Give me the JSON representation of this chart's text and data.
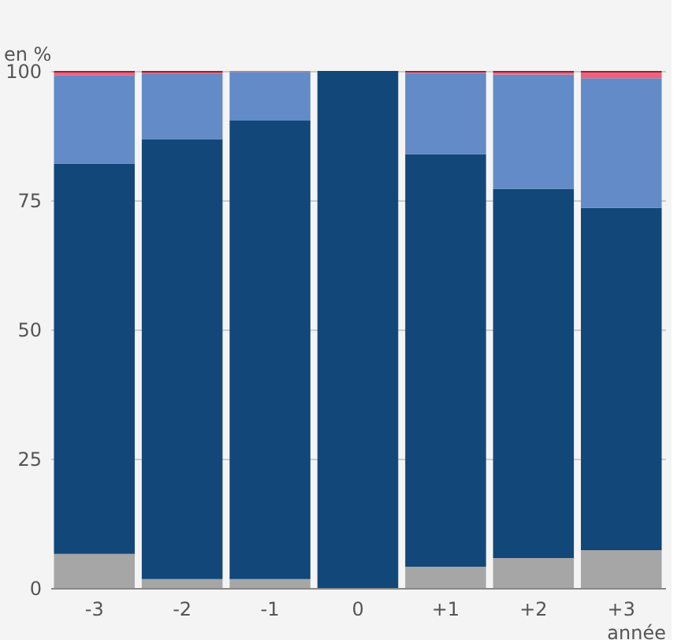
{
  "chart_data": {
    "type": "bar",
    "stacked": true,
    "xlabel": "année",
    "ylabel": "en %",
    "categories": [
      "-3",
      "-2",
      "-1",
      "0",
      "+1",
      "+2",
      "+3"
    ],
    "series": [
      {
        "color": "#a6a6a6",
        "values": [
          6.6,
          1.7,
          1.7,
          0,
          4.1,
          5.8,
          7.3
        ]
      },
      {
        "color": "#12477a",
        "values": [
          75.5,
          85.1,
          88.7,
          100,
          79.8,
          71.4,
          66.2
        ]
      },
      {
        "color": "#628bc7",
        "values": [
          17.1,
          12.6,
          9.4,
          0,
          15.7,
          22.1,
          25.1
        ]
      },
      {
        "color": "#f0627c",
        "values": [
          0.5,
          0.3,
          0.2,
          0,
          0.1,
          0.4,
          1.1
        ]
      },
      {
        "color": "#a01c3c",
        "values": [
          0.3,
          0.3,
          0,
          0,
          0.3,
          0.3,
          0.3
        ]
      }
    ],
    "ylim": [
      0,
      100
    ],
    "yticks": [
      0,
      25,
      50,
      75,
      100
    ],
    "grid": "y",
    "legend": false
  }
}
